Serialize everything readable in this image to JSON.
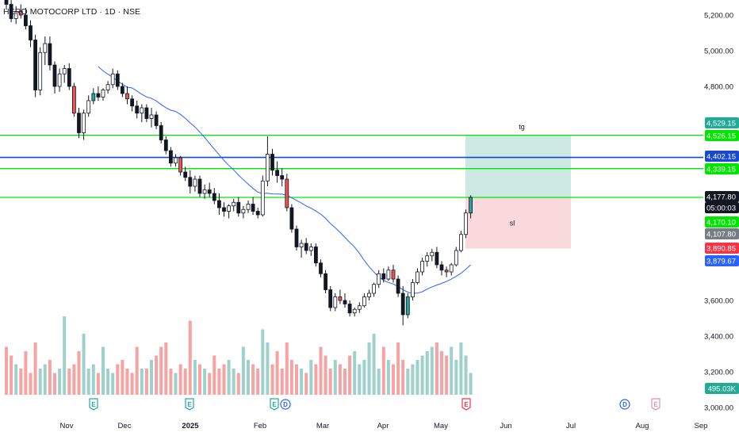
{
  "symbol_title": "HERO MOTOCORP LTD · 1D · NSE",
  "colors": {
    "up": "#26a69a",
    "down": "#ef5350",
    "hollow_stroke": "#131722",
    "ma": "#2962ff",
    "green_line": "#00e600",
    "blue_line": "#1848cc",
    "target_zone": "#cce9e3",
    "stop_zone": "#f9d9dc",
    "vol_up": "#9fd1cc",
    "vol_down": "#f5a3a3"
  },
  "price_axis": {
    "ticks": [
      "5,200.00",
      "5,000.00",
      "4,800.00",
      "3,600.00",
      "3,400.00",
      "3,200.00",
      "3,000.00"
    ]
  },
  "time_axis": {
    "labels": [
      "Nov",
      "Dec",
      "2025",
      "Feb",
      "Mar",
      "Apr",
      "May",
      "Jun",
      "Jul",
      "Aug",
      "Sep"
    ]
  },
  "price_badges": [
    {
      "label": "4,529.15",
      "color": "#22ab94",
      "price": 4529.15
    },
    {
      "label": "4,526.15",
      "color": "#00e600",
      "price": 4526.15,
      "text_color": "#131722"
    },
    {
      "label": "4,402.15",
      "color": "#1848cc",
      "price": 4402.15
    },
    {
      "label": "4,339.15",
      "color": "#00e600",
      "price": 4339.15,
      "text_color": "#131722"
    },
    {
      "label": "4,177.80",
      "color": "#131722",
      "price": 4177.8
    },
    {
      "label": "05:00:03",
      "color": "#131722",
      "price": 4150
    },
    {
      "label": "4,170.10",
      "color": "#00e600",
      "price": 4170.1,
      "text_color": "#131722"
    },
    {
      "label": "4,107.80",
      "color": "#787b86",
      "price": 4107.8
    },
    {
      "label": "3,890.85",
      "color": "#f23645",
      "price": 3890.85
    },
    {
      "label": "3,879.67",
      "color": "#2962ff",
      "price": 3879.67
    }
  ],
  "volume_badge": {
    "label": "495.03K",
    "color": "#22ab94"
  },
  "horizontal_lines": [
    {
      "price": 4526.15,
      "color": "#00e600"
    },
    {
      "price": 4402.15,
      "color": "#1848cc"
    },
    {
      "price": 4339.15,
      "color": "#00e600"
    },
    {
      "price": 4177.8,
      "color": "#00e600"
    }
  ],
  "position_tool": {
    "target_label": "tg",
    "stop_label": "sl",
    "entry": 4177.8,
    "target": 4529.15,
    "stop": 3890.85
  },
  "event_markers": [
    {
      "label": "E",
      "type": "earnings"
    },
    {
      "label": "E",
      "type": "earnings"
    },
    {
      "label": "E",
      "type": "earnings"
    },
    {
      "label": "D",
      "type": "dividend"
    },
    {
      "label": "E",
      "type": "earnings-red"
    },
    {
      "label": "D",
      "type": "dividend"
    },
    {
      "label": "E",
      "type": "earnings-pink"
    }
  ],
  "chart_data": {
    "type": "candlestick",
    "symbol": "HERO MOTOCORP LTD",
    "interval": "1D",
    "exchange": "NSE",
    "y_range": [
      3000,
      5280
    ],
    "candles": [
      [
        5290,
        5310,
        5230,
        5260
      ],
      [
        5260,
        5290,
        5160,
        5180
      ],
      [
        5180,
        5250,
        5150,
        5220
      ],
      [
        5220,
        5260,
        5180,
        5200
      ],
      [
        5200,
        5240,
        5120,
        5140
      ],
      [
        5140,
        5170,
        5020,
        5060
      ],
      [
        5060,
        5090,
        4740,
        4780
      ],
      [
        4780,
        5020,
        4750,
        4990
      ],
      [
        4990,
        5080,
        4920,
        5040
      ],
      [
        5040,
        5080,
        4890,
        4920
      ],
      [
        4920,
        4940,
        4760,
        4800
      ],
      [
        4800,
        4900,
        4770,
        4870
      ],
      [
        4870,
        4920,
        4820,
        4900
      ],
      [
        4900,
        4930,
        4780,
        4800
      ],
      [
        4800,
        4820,
        4630,
        4650
      ],
      [
        4650,
        4680,
        4510,
        4540
      ],
      [
        4540,
        4670,
        4500,
        4650
      ],
      [
        4650,
        4750,
        4630,
        4720
      ],
      [
        4720,
        4790,
        4700,
        4760
      ],
      [
        4760,
        4800,
        4720,
        4740
      ],
      [
        4740,
        4790,
        4720,
        4780
      ],
      [
        4780,
        4830,
        4760,
        4810
      ],
      [
        4810,
        4900,
        4790,
        4870
      ],
      [
        4870,
        4890,
        4780,
        4800
      ],
      [
        4800,
        4820,
        4740,
        4760
      ],
      [
        4760,
        4800,
        4700,
        4730
      ],
      [
        4730,
        4750,
        4660,
        4690
      ],
      [
        4690,
        4720,
        4620,
        4650
      ],
      [
        4650,
        4700,
        4600,
        4680
      ],
      [
        4680,
        4700,
        4600,
        4620
      ],
      [
        4620,
        4680,
        4570,
        4640
      ],
      [
        4640,
        4660,
        4560,
        4580
      ],
      [
        4580,
        4600,
        4480,
        4500
      ],
      [
        4500,
        4520,
        4420,
        4440
      ],
      [
        4440,
        4460,
        4350,
        4370
      ],
      [
        4370,
        4420,
        4350,
        4400
      ],
      [
        4400,
        4410,
        4300,
        4320
      ],
      [
        4320,
        4350,
        4270,
        4290
      ],
      [
        4290,
        4330,
        4200,
        4240
      ],
      [
        4240,
        4300,
        4210,
        4280
      ],
      [
        4280,
        4300,
        4180,
        4200
      ],
      [
        4200,
        4250,
        4170,
        4220
      ],
      [
        4220,
        4260,
        4180,
        4200
      ],
      [
        4200,
        4230,
        4140,
        4160
      ],
      [
        4160,
        4200,
        4080,
        4120
      ],
      [
        4120,
        4150,
        4070,
        4100
      ],
      [
        4100,
        4140,
        4060,
        4130
      ],
      [
        4130,
        4170,
        4100,
        4150
      ],
      [
        4150,
        4180,
        4070,
        4090
      ],
      [
        4090,
        4130,
        4060,
        4110
      ],
      [
        4110,
        4160,
        4090,
        4140
      ],
      [
        4140,
        4180,
        4080,
        4100
      ],
      [
        4100,
        4120,
        4060,
        4080
      ],
      [
        4080,
        4300,
        4070,
        4270
      ],
      [
        4270,
        4520,
        4240,
        4420
      ],
      [
        4420,
        4450,
        4300,
        4330
      ],
      [
        4330,
        4380,
        4260,
        4300
      ],
      [
        4300,
        4340,
        4240,
        4280
      ],
      [
        4280,
        4310,
        4100,
        4120
      ],
      [
        4120,
        4140,
        3980,
        4000
      ],
      [
        4000,
        4020,
        3880,
        3900
      ],
      [
        3900,
        3940,
        3840,
        3920
      ],
      [
        3920,
        3950,
        3860,
        3880
      ],
      [
        3880,
        3920,
        3850,
        3900
      ],
      [
        3900,
        3920,
        3790,
        3810
      ],
      [
        3810,
        3830,
        3730,
        3750
      ],
      [
        3750,
        3770,
        3640,
        3660
      ],
      [
        3660,
        3680,
        3540,
        3560
      ],
      [
        3560,
        3640,
        3540,
        3620
      ],
      [
        3620,
        3660,
        3580,
        3600
      ],
      [
        3600,
        3640,
        3560,
        3580
      ],
      [
        3580,
        3600,
        3510,
        3530
      ],
      [
        3530,
        3560,
        3510,
        3550
      ],
      [
        3550,
        3590,
        3530,
        3570
      ],
      [
        3570,
        3640,
        3560,
        3620
      ],
      [
        3620,
        3660,
        3600,
        3640
      ],
      [
        3640,
        3700,
        3620,
        3690
      ],
      [
        3690,
        3770,
        3670,
        3750
      ],
      [
        3750,
        3780,
        3700,
        3720
      ],
      [
        3720,
        3790,
        3710,
        3770
      ],
      [
        3770,
        3800,
        3700,
        3720
      ],
      [
        3720,
        3740,
        3620,
        3640
      ],
      [
        3640,
        3680,
        3460,
        3520
      ],
      [
        3520,
        3640,
        3500,
        3620
      ],
      [
        3620,
        3720,
        3600,
        3700
      ],
      [
        3700,
        3780,
        3690,
        3760
      ],
      [
        3760,
        3840,
        3740,
        3820
      ],
      [
        3820,
        3870,
        3790,
        3850
      ],
      [
        3850,
        3890,
        3820,
        3870
      ],
      [
        3870,
        3900,
        3780,
        3800
      ],
      [
        3800,
        3820,
        3740,
        3770
      ],
      [
        3770,
        3790,
        3730,
        3760
      ],
      [
        3760,
        3810,
        3740,
        3800
      ],
      [
        3800,
        3900,
        3790,
        3880
      ],
      [
        3880,
        3990,
        3870,
        3970
      ],
      [
        3970,
        4110,
        3950,
        4090
      ],
      [
        4090,
        4190,
        4060,
        4177.8
      ]
    ],
    "volume_relative": [
      0.55,
      0.45,
      0.35,
      0.3,
      0.5,
      0.25,
      0.6,
      0.3,
      0.35,
      0.4,
      0.25,
      0.3,
      0.9,
      0.3,
      0.35,
      0.5,
      0.7,
      0.3,
      0.35,
      0.25,
      0.55,
      0.3,
      0.25,
      0.35,
      0.4,
      0.3,
      0.25,
      0.55,
      0.3,
      0.3,
      0.4,
      0.45,
      0.55,
      0.6,
      0.3,
      0.25,
      0.35,
      0.3,
      0.85,
      0.4,
      0.35,
      0.3,
      0.25,
      0.45,
      0.3,
      0.35,
      0.4,
      0.3,
      0.25,
      0.55,
      0.4,
      0.35,
      0.3,
      0.75,
      0.6,
      0.35,
      0.5,
      0.3,
      0.6,
      0.4,
      0.35,
      0.3,
      0.25,
      0.4,
      0.35,
      0.55,
      0.45,
      0.3,
      0.4,
      0.35,
      0.3,
      0.45,
      0.5,
      0.35,
      0.4,
      0.6,
      0.7,
      0.3,
      0.55,
      0.4,
      0.35,
      0.6,
      0.4,
      0.3,
      0.35,
      0.4,
      0.45,
      0.5,
      0.55,
      0.6,
      0.5,
      0.45,
      0.55,
      0.4,
      0.6,
      0.45,
      0.25
    ]
  }
}
